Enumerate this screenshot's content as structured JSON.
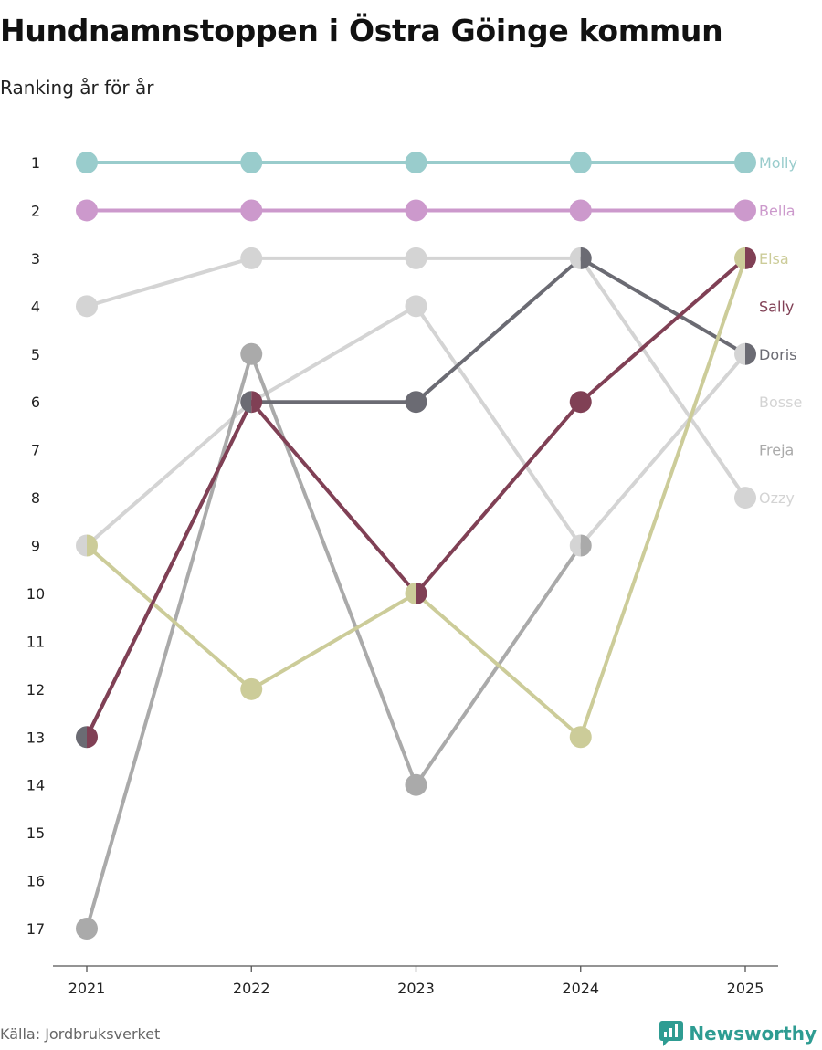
{
  "header": {
    "title": "Hundnamnstoppen i Östra Göinge kommun",
    "subtitle": "Ranking år för år"
  },
  "footer": {
    "source": "Källa: Jordbruksverket",
    "brand": "Newsworthy"
  },
  "colors": {
    "Molly": "#99cccc",
    "Bella": "#cc99cc",
    "Elsa": "#cccc99",
    "Sally": "#804055",
    "Doris": "#6b6b73",
    "Bosse": "#d4d4d4",
    "Freja": "#aaaaaa",
    "Ozzy": "#d4d4d4",
    "axis": "#555555",
    "brand": "#2e9c92"
  },
  "chart_data": {
    "type": "line",
    "x": [
      "2021",
      "2022",
      "2023",
      "2024",
      "2025"
    ],
    "ylim": [
      1,
      17
    ],
    "y_reversed": true,
    "yticks": [
      "1",
      "2",
      "3",
      "4",
      "5",
      "6",
      "7",
      "8",
      "9",
      "10",
      "11",
      "12",
      "13",
      "14",
      "15",
      "16",
      "17"
    ],
    "grid": false,
    "series": [
      {
        "name": "Ozzy",
        "values": [
          4,
          3,
          3,
          3,
          8
        ]
      },
      {
        "name": "Bosse",
        "values": [
          9,
          6,
          4,
          9,
          5
        ]
      },
      {
        "name": "Freja",
        "values": [
          17,
          5,
          14,
          9,
          null
        ]
      },
      {
        "name": "Doris",
        "values": [
          13,
          6,
          6,
          3,
          5
        ]
      },
      {
        "name": "Elsa",
        "values": [
          9,
          12,
          10,
          13,
          3
        ]
      },
      {
        "name": "Sally",
        "values": [
          13,
          6,
          10,
          6,
          3
        ]
      },
      {
        "name": "Bella",
        "values": [
          2,
          2,
          2,
          2,
          2
        ]
      },
      {
        "name": "Molly",
        "values": [
          1,
          1,
          1,
          1,
          1
        ]
      }
    ],
    "labels": [
      {
        "name": "Molly",
        "rank": 1
      },
      {
        "name": "Bella",
        "rank": 2
      },
      {
        "name": "Elsa",
        "rank": 3
      },
      {
        "name": "Sally",
        "rank": 4
      },
      {
        "name": "Doris",
        "rank": 5
      },
      {
        "name": "Bosse",
        "rank": 6
      },
      {
        "name": "Freja",
        "rank": 7
      },
      {
        "name": "Ozzy",
        "rank": 8
      }
    ]
  }
}
